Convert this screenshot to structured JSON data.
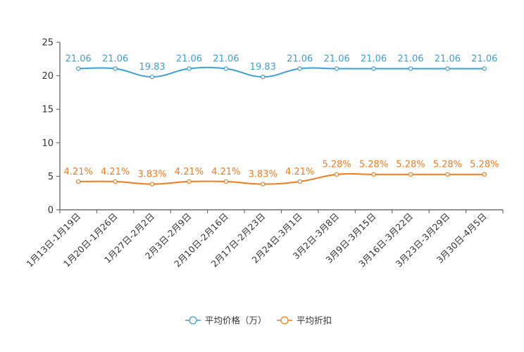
{
  "chart_data": {
    "type": "line",
    "title": "",
    "xlabel": "",
    "ylabel": "",
    "ylim": [
      0,
      25
    ],
    "yticks": [
      0,
      5,
      10,
      15,
      20,
      25
    ],
    "categories": [
      "1月13日-1月19日",
      "1月20日-1月26日",
      "1月27日-2月2日",
      "2月3日-2月9日",
      "2月10日-2月16日",
      "2月17日-2月23日",
      "2月24日-3月1日",
      "3月2日-3月8日",
      "3月9日-3月15日",
      "3月16日-3月22日",
      "3月23日-3月29日",
      "3月30日-4月5日"
    ],
    "series": [
      {
        "name": "平均价格（万）",
        "color": "#3d9fd1",
        "values": [
          21.06,
          21.06,
          19.83,
          21.06,
          21.06,
          19.83,
          21.06,
          21.06,
          21.06,
          21.06,
          21.06,
          21.06
        ],
        "labels": [
          "21.06",
          "21.06",
          "19.83",
          "21.06",
          "21.06",
          "19.83",
          "21.06",
          "21.06",
          "21.06",
          "21.06",
          "21.06",
          "21.06"
        ]
      },
      {
        "name": "平均折扣",
        "color": "#ef7c1e",
        "values": [
          4.21,
          4.21,
          3.83,
          4.21,
          4.21,
          3.83,
          4.21,
          5.28,
          5.28,
          5.28,
          5.28,
          5.28
        ],
        "labels": [
          "4.21%",
          "4.21%",
          "3.83%",
          "4.21%",
          "4.21%",
          "3.83%",
          "4.21%",
          "5.28%",
          "5.28%",
          "5.28%",
          "5.28%",
          "5.28%"
        ]
      }
    ],
    "legend_position": "bottom-center"
  }
}
